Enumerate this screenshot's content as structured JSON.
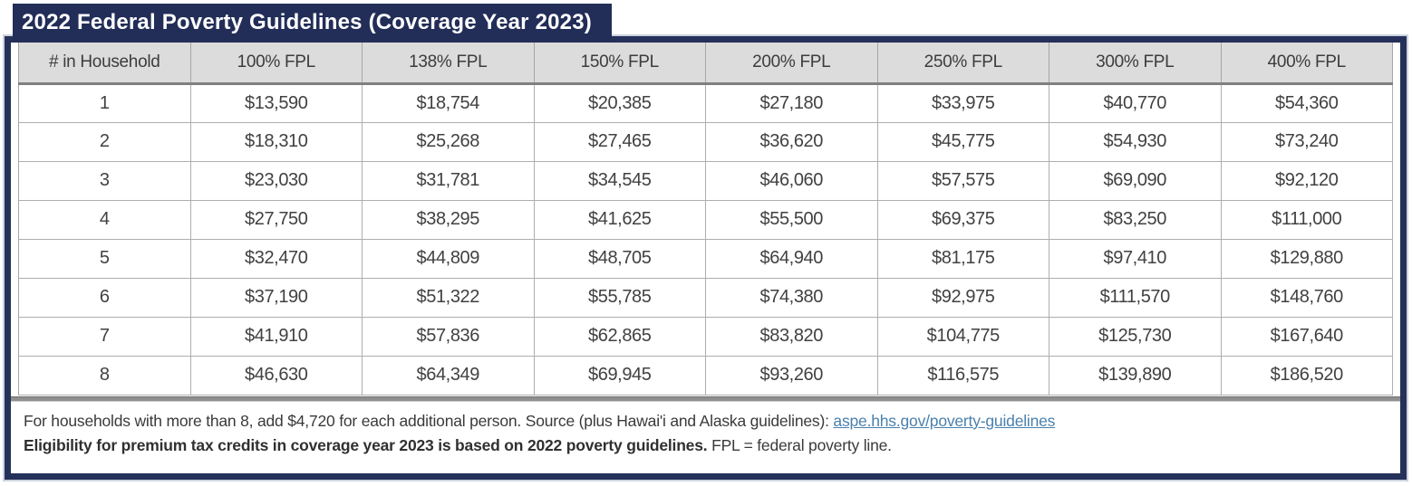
{
  "title": "2022 Federal Poverty Guidelines (Coverage Year 2023)",
  "colors": {
    "navy": "#222e58",
    "header_bg": "#dcdcdc",
    "grid_line": "#aeaeae",
    "link_blue": "#4a80ad",
    "cell_text": "#414141"
  },
  "table": {
    "columns": [
      "# in Household",
      "100% FPL",
      "138% FPL",
      "150% FPL",
      "200% FPL",
      "250% FPL",
      "300% FPL",
      "400% FPL"
    ],
    "rows": [
      [
        "1",
        "$13,590",
        "$18,754",
        "$20,385",
        "$27,180",
        "$33,975",
        "$40,770",
        "$54,360"
      ],
      [
        "2",
        "$18,310",
        "$25,268",
        "$27,465",
        "$36,620",
        "$45,775",
        "$54,930",
        "$73,240"
      ],
      [
        "3",
        "$23,030",
        "$31,781",
        "$34,545",
        "$46,060",
        "$57,575",
        "$69,090",
        "$92,120"
      ],
      [
        "4",
        "$27,750",
        "$38,295",
        "$41,625",
        "$55,500",
        "$69,375",
        "$83,250",
        "$111,000"
      ],
      [
        "5",
        "$32,470",
        "$44,809",
        "$48,705",
        "$64,940",
        "$81,175",
        "$97,410",
        "$129,880"
      ],
      [
        "6",
        "$37,190",
        "$51,322",
        "$55,785",
        "$74,380",
        "$92,975",
        "$111,570",
        "$148,760"
      ],
      [
        "7",
        "$41,910",
        "$57,836",
        "$62,865",
        "$83,820",
        "$104,775",
        "$125,730",
        "$167,640"
      ],
      [
        "8",
        "$46,630",
        "$64,349",
        "$69,945",
        "$93,260",
        "$116,575",
        "$139,890",
        "$186,520"
      ]
    ]
  },
  "footnotes": {
    "line1_text": "For households with more than 8, add $4,720 for each additional person.  Source (plus Hawai'i and Alaska guidelines): ",
    "line1_link": "aspe.hhs.gov/poverty-guidelines",
    "line2_bold": "Eligibility for premium tax credits in coverage year 2023 is based on 2022 poverty guidelines.",
    "line2_regular": "  FPL = federal poverty line."
  }
}
